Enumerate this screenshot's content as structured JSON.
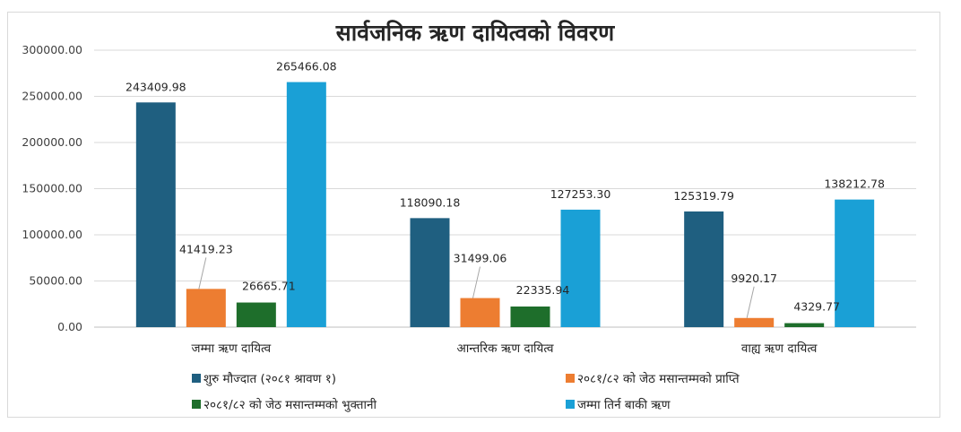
{
  "chart_data": {
    "type": "bar",
    "title": "सार्वजनिक ऋण दायित्वको विवरण",
    "categories": [
      "जम्मा ऋण दायित्व",
      "आन्तरिक ऋण दायित्व",
      "वाह्य ऋण दायित्व"
    ],
    "series": [
      {
        "name": "शुरु मौज्दात (२०८१ श्रावण १)",
        "color": "#1f5f80",
        "values": [
          243409.98,
          118090.18,
          125319.79
        ],
        "labels": [
          "243409.98",
          "118090.18",
          "125319.79"
        ]
      },
      {
        "name": "२०८१/८२ को जेठ मसान्तम्मको प्राप्ति",
        "color": "#ed7d31",
        "values": [
          41419.23,
          31499.06,
          9920.17
        ],
        "labels": [
          "41419.23",
          "31499.06",
          "9920.17"
        ]
      },
      {
        "name": "२०८१/८२ को जेठ मसान्तम्मको भुक्तानी",
        "color": "#1e6e2b",
        "values": [
          26665.71,
          22335.94,
          4329.77
        ],
        "labels": [
          "26665.71",
          "22335.94",
          "4329.77"
        ]
      },
      {
        "name": "जम्मा तिर्न बाकी ऋण",
        "color": "#1aa0d6",
        "values": [
          265466.08,
          127253.3,
          138212.78
        ],
        "labels": [
          "265466.08",
          "127253.30",
          "138212.78"
        ]
      }
    ],
    "yticks": [
      "0.00",
      "50000.00",
      "100000.00",
      "150000.00",
      "200000.00",
      "250000.00",
      "300000.00"
    ],
    "ylim": [
      0,
      300000
    ],
    "grid": true,
    "legend_position": "bottom"
  }
}
